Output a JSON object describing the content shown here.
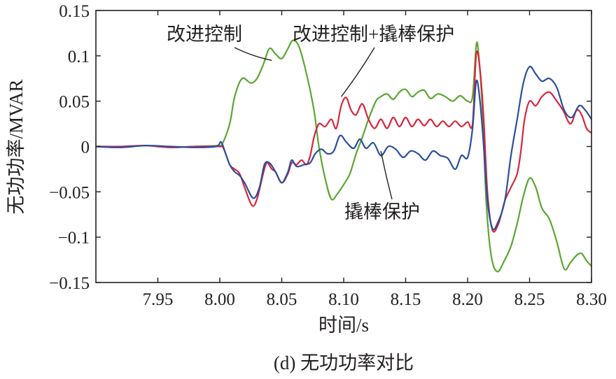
{
  "chart_data": {
    "type": "line",
    "xlabel": "时间/s",
    "ylabel": "无功功率/MVAR",
    "caption": "(d) 无功功率对比",
    "xlim": [
      7.9,
      8.3
    ],
    "ylim": [
      -0.15,
      0.15
    ],
    "xticks": [
      7.95,
      8.0,
      8.05,
      8.1,
      8.15,
      8.2,
      8.25,
      8.3
    ],
    "xtick_labels": [
      "7.95",
      "8.00",
      "8.05",
      "8.10",
      "8.15",
      "8.20",
      "8.25",
      "8.30"
    ],
    "yticks": [
      0.15,
      0.1,
      0.05,
      0,
      -0.05,
      -0.1,
      -0.15
    ],
    "ytick_labels": [
      "0.15",
      "0.1",
      "0.05",
      "0",
      "−0.05",
      "−0.1",
      "−0.15"
    ],
    "grid": false,
    "legend": "none",
    "series": [
      {
        "name": "改进控制",
        "color": "#5aa632",
        "points": [
          [
            7.9,
            0
          ],
          [
            7.92,
            -0.001
          ],
          [
            7.94,
            0.001
          ],
          [
            7.96,
            -0.001
          ],
          [
            7.98,
            0
          ],
          [
            7.998,
            0.001
          ],
          [
            8.002,
            0.003
          ],
          [
            8.008,
            0.025
          ],
          [
            8.012,
            0.055
          ],
          [
            8.018,
            0.075
          ],
          [
            8.025,
            0.07
          ],
          [
            8.03,
            0.075
          ],
          [
            8.035,
            0.09
          ],
          [
            8.04,
            0.108
          ],
          [
            8.045,
            0.102
          ],
          [
            8.05,
            0.097
          ],
          [
            8.055,
            0.108
          ],
          [
            8.059,
            0.117
          ],
          [
            8.064,
            0.11
          ],
          [
            8.07,
            0.08
          ],
          [
            8.076,
            0.04
          ],
          [
            8.08,
            0
          ],
          [
            8.085,
            -0.035
          ],
          [
            8.09,
            -0.058
          ],
          [
            8.095,
            -0.052
          ],
          [
            8.1,
            -0.042
          ],
          [
            8.105,
            -0.03
          ],
          [
            8.11,
            -0.008
          ],
          [
            8.115,
            0.01
          ],
          [
            8.12,
            0.03
          ],
          [
            8.126,
            0.05
          ],
          [
            8.13,
            0.055
          ],
          [
            8.135,
            0.058
          ],
          [
            8.14,
            0.052
          ],
          [
            8.145,
            0.06
          ],
          [
            8.15,
            0.063
          ],
          [
            8.155,
            0.055
          ],
          [
            8.16,
            0.06
          ],
          [
            8.165,
            0.062
          ],
          [
            8.17,
            0.053
          ],
          [
            8.176,
            0.058
          ],
          [
            8.182,
            0.055
          ],
          [
            8.188,
            0.05
          ],
          [
            8.194,
            0.056
          ],
          [
            8.2,
            0.05
          ],
          [
            8.204,
            0.055
          ],
          [
            8.207,
            0.112
          ],
          [
            8.209,
            0.1
          ],
          [
            8.212,
            0.04
          ],
          [
            8.215,
            -0.06
          ],
          [
            8.219,
            -0.12
          ],
          [
            8.224,
            -0.138
          ],
          [
            8.23,
            -0.125
          ],
          [
            8.235,
            -0.11
          ],
          [
            8.24,
            -0.085
          ],
          [
            8.245,
            -0.055
          ],
          [
            8.25,
            -0.035
          ],
          [
            8.255,
            -0.045
          ],
          [
            8.26,
            -0.068
          ],
          [
            8.266,
            -0.08
          ],
          [
            8.272,
            -0.105
          ],
          [
            8.278,
            -0.135
          ],
          [
            8.283,
            -0.128
          ],
          [
            8.288,
            -0.12
          ],
          [
            8.292,
            -0.118
          ],
          [
            8.296,
            -0.126
          ],
          [
            8.3,
            -0.132
          ]
        ]
      },
      {
        "name": "改进控制+撬棒保护",
        "color": "#d7263d",
        "points": [
          [
            7.9,
            0
          ],
          [
            7.92,
            0
          ],
          [
            7.94,
            0.001
          ],
          [
            7.96,
            -0.001
          ],
          [
            7.98,
            0
          ],
          [
            8.0,
            0
          ],
          [
            8.003,
            -0.002
          ],
          [
            8.008,
            -0.02
          ],
          [
            8.012,
            -0.025
          ],
          [
            8.016,
            -0.03
          ],
          [
            8.02,
            -0.045
          ],
          [
            8.026,
            -0.065
          ],
          [
            8.03,
            -0.058
          ],
          [
            8.035,
            -0.03
          ],
          [
            8.038,
            -0.018
          ],
          [
            8.042,
            -0.025
          ],
          [
            8.045,
            -0.028
          ],
          [
            8.05,
            -0.04
          ],
          [
            8.055,
            -0.03
          ],
          [
            8.058,
            -0.018
          ],
          [
            8.062,
            -0.02
          ],
          [
            8.066,
            -0.015
          ],
          [
            8.07,
            -0.02
          ],
          [
            8.073,
            -0.01
          ],
          [
            8.076,
            0.01
          ],
          [
            8.08,
            0.025
          ],
          [
            8.085,
            0.022
          ],
          [
            8.09,
            0.03
          ],
          [
            8.094,
            0.02
          ],
          [
            8.098,
            0.045
          ],
          [
            8.102,
            0.054
          ],
          [
            8.106,
            0.04
          ],
          [
            8.11,
            0.035
          ],
          [
            8.115,
            0.047
          ],
          [
            8.12,
            0.03
          ],
          [
            8.125,
            0.02
          ],
          [
            8.13,
            0.03
          ],
          [
            8.135,
            0.02
          ],
          [
            8.14,
            0.032
          ],
          [
            8.145,
            0.022
          ],
          [
            8.15,
            0.032
          ],
          [
            8.155,
            0.022
          ],
          [
            8.16,
            0.03
          ],
          [
            8.165,
            0.023
          ],
          [
            8.17,
            0.03
          ],
          [
            8.175,
            0.022
          ],
          [
            8.18,
            0.028
          ],
          [
            8.185,
            0.022
          ],
          [
            8.19,
            0.028
          ],
          [
            8.195,
            0.022
          ],
          [
            8.2,
            0.027
          ],
          [
            8.204,
            0.025
          ],
          [
            8.207,
            0.102
          ],
          [
            8.21,
            0.085
          ],
          [
            8.213,
            0.03
          ],
          [
            8.216,
            -0.05
          ],
          [
            8.22,
            -0.092
          ],
          [
            8.225,
            -0.085
          ],
          [
            8.23,
            -0.06
          ],
          [
            8.235,
            -0.045
          ],
          [
            8.24,
            -0.03
          ],
          [
            8.243,
            -0.005
          ],
          [
            8.246,
            0.03
          ],
          [
            8.25,
            0.05
          ],
          [
            8.255,
            0.045
          ],
          [
            8.26,
            0.055
          ],
          [
            8.266,
            0.06
          ],
          [
            8.272,
            0.05
          ],
          [
            8.277,
            0.04
          ],
          [
            8.283,
            0.025
          ],
          [
            8.288,
            0.04
          ],
          [
            8.292,
            0.035
          ],
          [
            8.296,
            0.02
          ],
          [
            8.3,
            0.015
          ]
        ]
      },
      {
        "name": "撬棒保护",
        "color": "#2b4f9e",
        "points": [
          [
            7.9,
            0
          ],
          [
            7.92,
            -0.001
          ],
          [
            7.94,
            0.001
          ],
          [
            7.96,
            0
          ],
          [
            7.98,
            -0.001
          ],
          [
            7.997,
            0
          ],
          [
            8.001,
            0.005
          ],
          [
            8.004,
            -0.005
          ],
          [
            8.008,
            -0.02
          ],
          [
            8.012,
            -0.028
          ],
          [
            8.016,
            -0.032
          ],
          [
            8.02,
            -0.04
          ],
          [
            8.027,
            -0.057
          ],
          [
            8.032,
            -0.045
          ],
          [
            8.036,
            -0.02
          ],
          [
            8.04,
            -0.018
          ],
          [
            8.045,
            -0.028
          ],
          [
            8.05,
            -0.04
          ],
          [
            8.055,
            -0.028
          ],
          [
            8.058,
            -0.015
          ],
          [
            8.062,
            -0.022
          ],
          [
            8.068,
            -0.02
          ],
          [
            8.073,
            -0.018
          ],
          [
            8.077,
            -0.008
          ],
          [
            8.082,
            -0.003
          ],
          [
            8.087,
            -0.008
          ],
          [
            8.092,
            -0.005
          ],
          [
            8.097,
            0.012
          ],
          [
            8.102,
            0.005
          ],
          [
            8.108,
            -0.002
          ],
          [
            8.113,
            0.008
          ],
          [
            8.118,
            -0.002
          ],
          [
            8.124,
            0.004
          ],
          [
            8.13,
            -0.01
          ],
          [
            8.136,
            0
          ],
          [
            8.142,
            -0.003
          ],
          [
            8.148,
            -0.012
          ],
          [
            8.154,
            -0.005
          ],
          [
            8.16,
            -0.008
          ],
          [
            8.166,
            -0.015
          ],
          [
            8.172,
            -0.005
          ],
          [
            8.178,
            -0.01
          ],
          [
            8.184,
            -0.013
          ],
          [
            8.19,
            -0.025
          ],
          [
            8.195,
            -0.01
          ],
          [
            8.2,
            -0.012
          ],
          [
            8.204,
            0.02
          ],
          [
            8.207,
            0.072
          ],
          [
            8.21,
            0.05
          ],
          [
            8.213,
            0
          ],
          [
            8.216,
            -0.06
          ],
          [
            8.22,
            -0.09
          ],
          [
            8.224,
            -0.085
          ],
          [
            8.23,
            -0.06
          ],
          [
            8.235,
            -0.01
          ],
          [
            8.24,
            0.03
          ],
          [
            8.245,
            0.07
          ],
          [
            8.25,
            0.088
          ],
          [
            8.255,
            0.08
          ],
          [
            8.26,
            0.072
          ],
          [
            8.266,
            0.075
          ],
          [
            8.272,
            0.065
          ],
          [
            8.278,
            0.04
          ],
          [
            8.284,
            0.032
          ],
          [
            8.29,
            0.045
          ],
          [
            8.295,
            0.04
          ],
          [
            8.3,
            0.03
          ]
        ]
      }
    ],
    "annotations": [
      {
        "text": "改进控制",
        "at": [
          8.042,
          0.095
        ]
      },
      {
        "text": "改进控制+撬棒保护",
        "at": [
          8.098,
          0.055
        ]
      },
      {
        "text": "撬棒保护",
        "at": [
          8.13,
          -0.005
        ]
      }
    ]
  }
}
